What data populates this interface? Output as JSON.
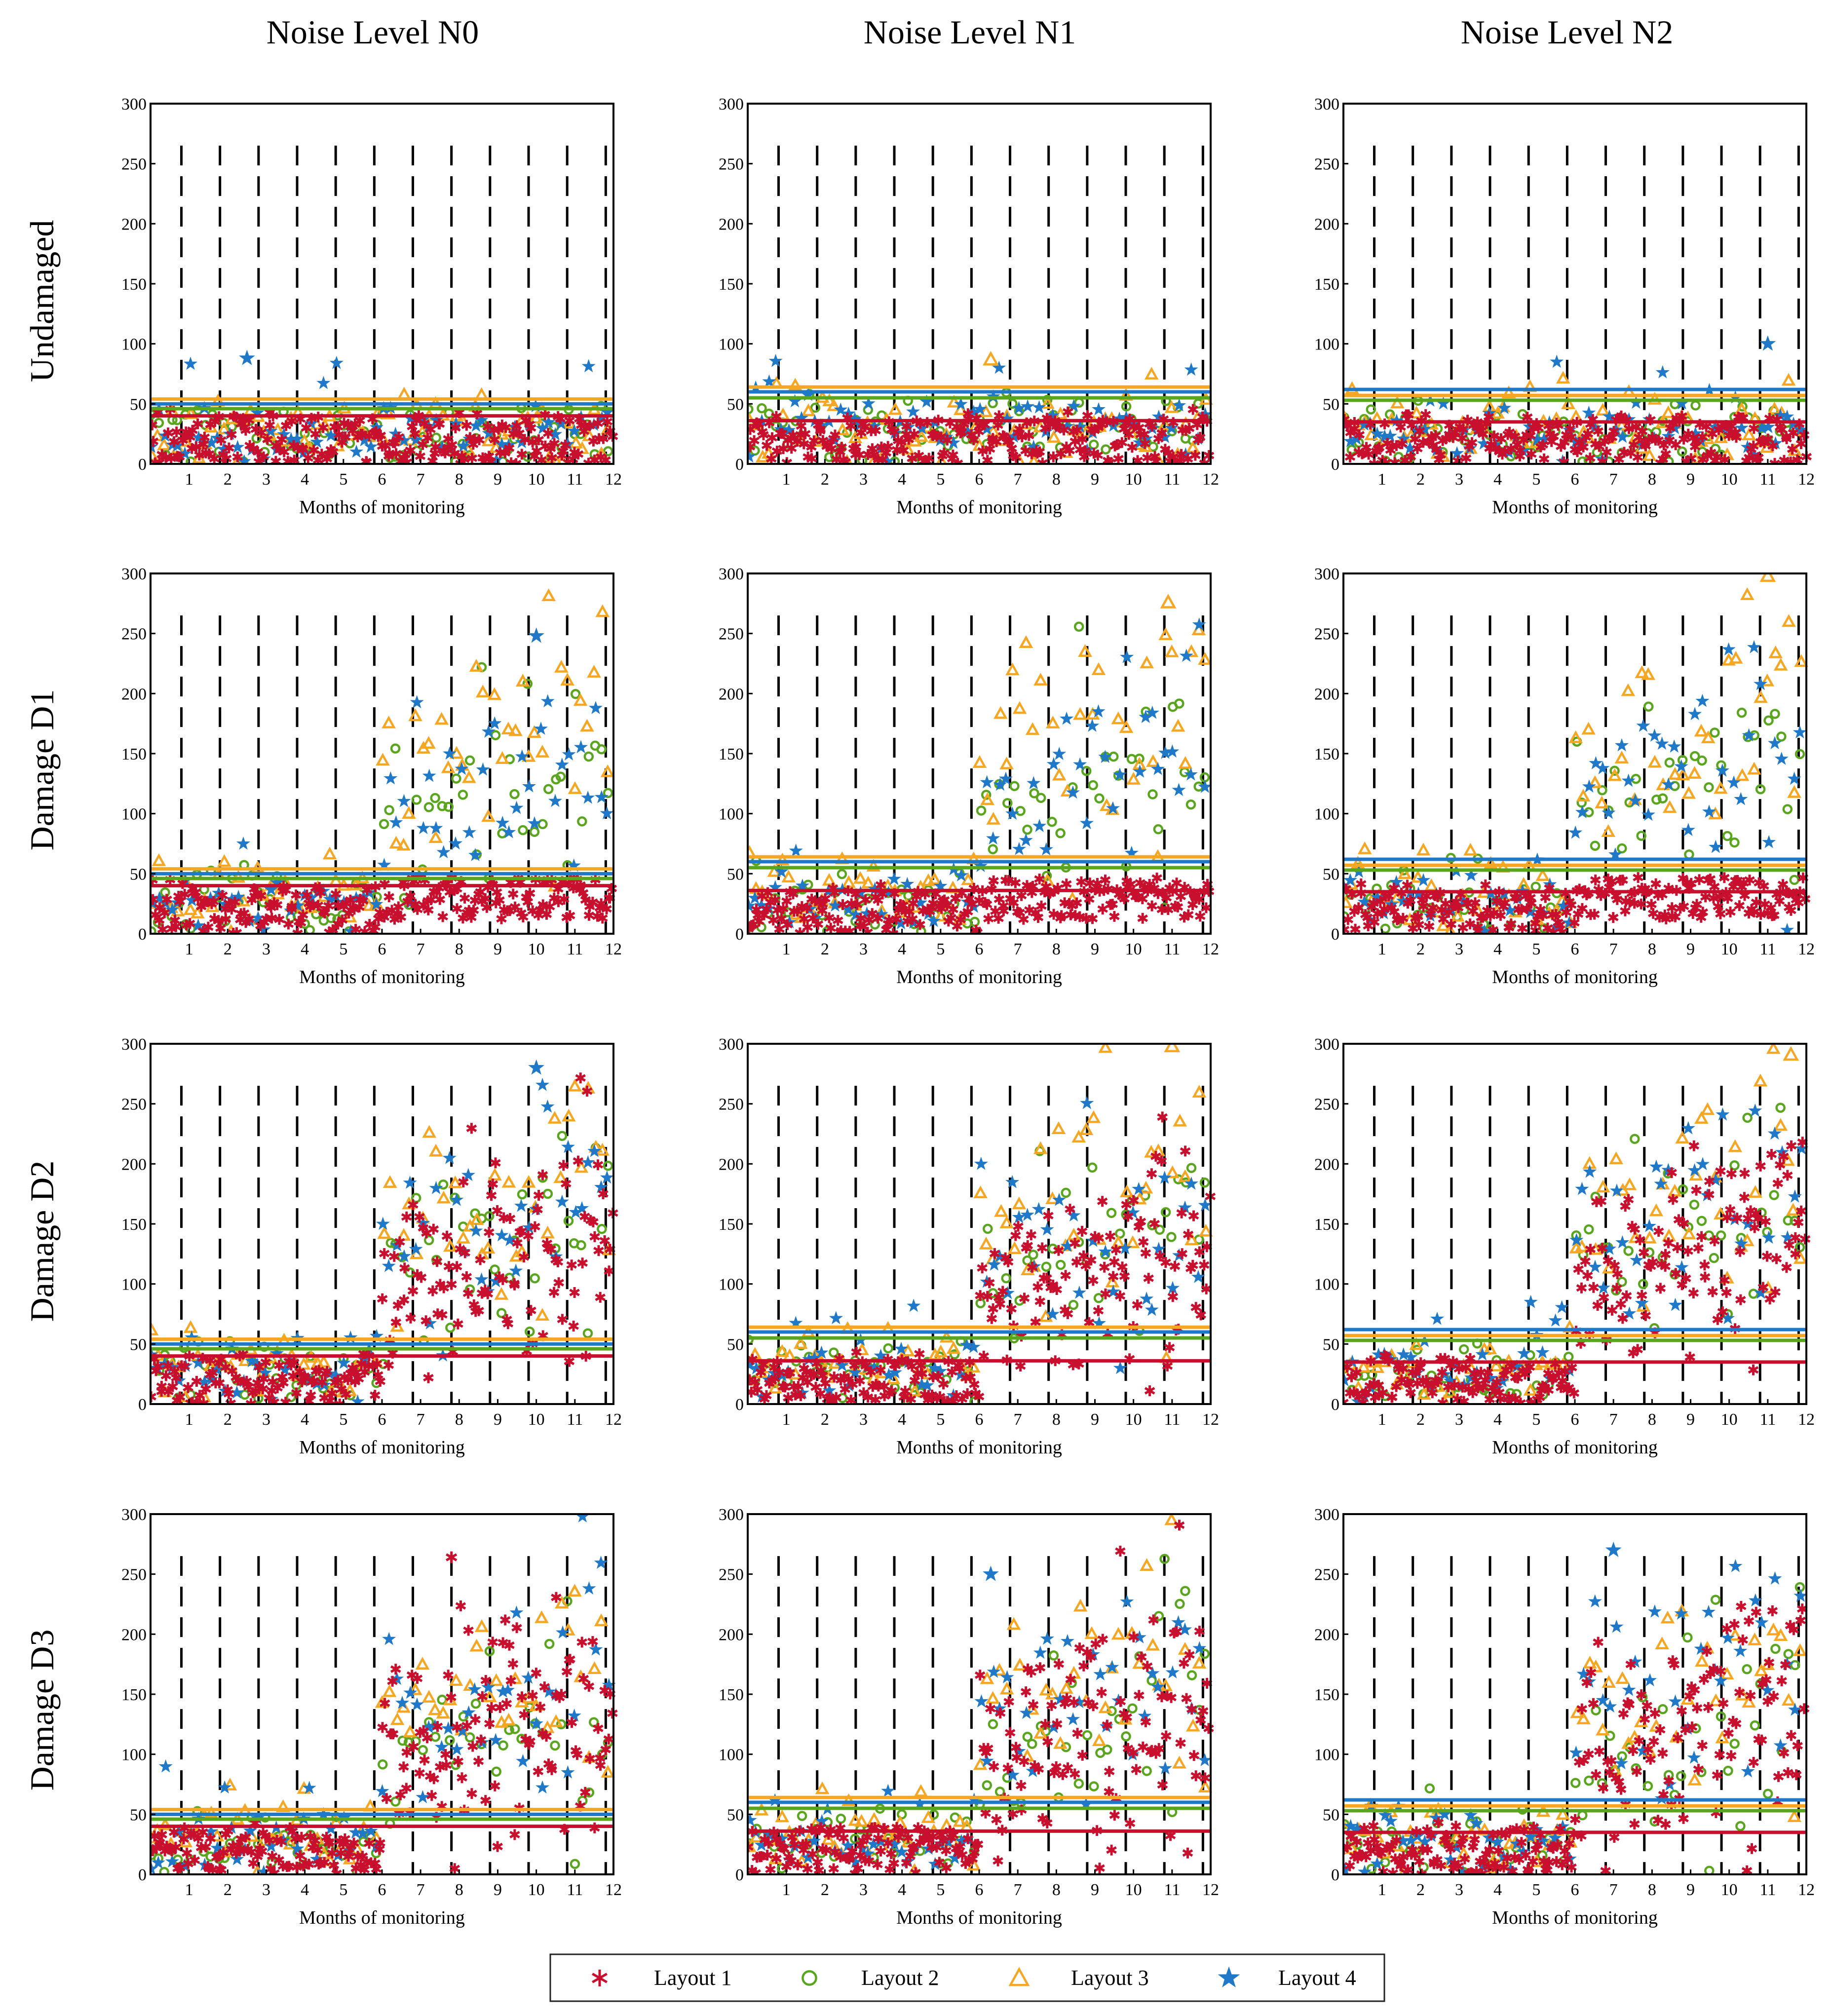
{
  "column_titles": [
    "Noise Level N0",
    "Noise Level N1",
    "Noise Level N2"
  ],
  "row_titles": [
    "Undamaged",
    "Damage D1",
    "Damage D2",
    "Damage D3"
  ],
  "colors": {
    "layout1": "#c8102e",
    "layout2": "#5aa51e",
    "layout3": "#f5a623",
    "layout4": "#1f78c8",
    "dashed": "#000000"
  },
  "legend": [
    {
      "label": "Layout 1",
      "marker": "asterisk-icon"
    },
    {
      "label": "Layout 2",
      "marker": "circle-icon"
    },
    {
      "label": "Layout 3",
      "marker": "triangle-icon"
    },
    {
      "label": "Layout 4",
      "marker": "star-icon"
    }
  ],
  "chart_data": {
    "type": "scatter",
    "layout": "4 rows (damage scenario) x 3 columns (noise level) small multiples",
    "xlabel": "Months of monitoring",
    "ylabel": "",
    "xlim": [
      0,
      12
    ],
    "ylim": [
      0,
      300
    ],
    "x_ticks": [
      "1",
      "2",
      "3",
      "4",
      "5",
      "6",
      "7",
      "8",
      "9",
      "10",
      "11",
      "12"
    ],
    "y_ticks": [
      "0",
      "50",
      "100",
      "150",
      "200",
      "250",
      "300"
    ],
    "month_separators": "vertical dashed lines at each month 1-12",
    "damage_onset_month": 6,
    "threshold_lines": {
      "N0": {
        "layout1": 40,
        "layout2": 46,
        "layout3": 54,
        "layout4": 50
      },
      "N1": {
        "layout1": 36,
        "layout2": 55,
        "layout3": 64,
        "layout4": 60
      },
      "N2": {
        "layout1": 35,
        "layout2": 53,
        "layout3": 57,
        "layout4": 62
      }
    },
    "baseline_levels": {
      "layout1": {
        "N0": 18,
        "N1": 20,
        "N2": 18
      },
      "layout2": {
        "N0": 26,
        "N1": 28,
        "N2": 26
      },
      "layout3": {
        "N0": 30,
        "N1": 32,
        "N2": 30
      },
      "layout4": {
        "N0": 28,
        "N1": 30,
        "N2": 28
      }
    },
    "post_damage_mean_levels": {
      "D1": {
        "layout1": 24,
        "layout2": 120,
        "layout3": 150,
        "layout4": 130
      },
      "D2": {
        "layout1": 110,
        "layout2": 135,
        "layout3": 160,
        "layout4": 150
      },
      "D3": {
        "layout1": 115,
        "layout2": 115,
        "layout3": 150,
        "layout4": 150
      }
    },
    "notable_points": [
      {
        "panel": "Undamaged N0",
        "series": "Layout 4",
        "x": 2.5,
        "y": 88
      },
      {
        "panel": "Undamaged N1",
        "series": "Layout 3",
        "x": 6.3,
        "y": 87
      },
      {
        "panel": "Undamaged N2",
        "series": "Layout 4",
        "x": 11.0,
        "y": 100
      },
      {
        "panel": "Damage D1 N0",
        "series": "Layout 4",
        "x": 10.0,
        "y": 248
      },
      {
        "panel": "Damage D1 N1",
        "series": "Layout 3",
        "x": 10.9,
        "y": 276
      },
      {
        "panel": "Damage D1 N2",
        "series": "Layout 3",
        "x": 11.0,
        "y": 298
      },
      {
        "panel": "Damage D2 N0",
        "series": "Layout 4",
        "x": 10.0,
        "y": 280
      },
      {
        "panel": "Damage D2 N1",
        "series": "Layout 3",
        "x": 11.0,
        "y": 298
      },
      {
        "panel": "Damage D2 N2",
        "series": "Layout 3",
        "x": 11.6,
        "y": 291
      },
      {
        "panel": "Damage D3 N0",
        "series": "Layout 1",
        "x": 7.8,
        "y": 264
      },
      {
        "panel": "Damage D3 N1",
        "series": "Layout 4",
        "x": 6.3,
        "y": 250
      },
      {
        "panel": "Damage D3 N2",
        "series": "Layout 4",
        "x": 7.0,
        "y": 270
      }
    ],
    "series": [
      {
        "name": "Layout 1",
        "marker": "asterisk"
      },
      {
        "name": "Layout 2",
        "marker": "circle"
      },
      {
        "name": "Layout 3",
        "marker": "triangle"
      },
      {
        "name": "Layout 4",
        "marker": "star"
      }
    ]
  }
}
